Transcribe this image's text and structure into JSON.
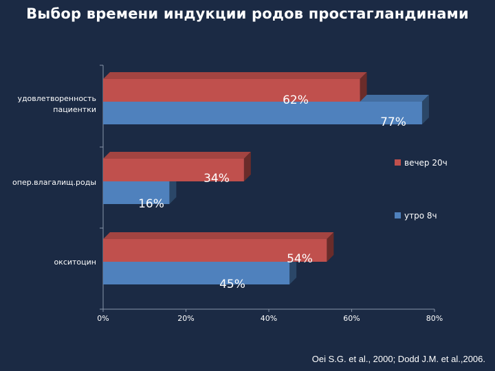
{
  "title": "Выбор времени индукции родов простагландинами",
  "citation": "Oei S.G. et al., 2000; Dodd J.M. et al.,2006.",
  "chart_data": {
    "type": "bar",
    "orientation": "horizontal",
    "categories": [
      "удовлетворенность пациентки",
      "опер.влагалищ.роды",
      "окситоцин"
    ],
    "category_lines": [
      [
        "удовлетворенность",
        "пациентки"
      ],
      [
        "опер.влагалищ.роды"
      ],
      [
        "окситоцин"
      ]
    ],
    "series": [
      {
        "name": "вечер 20ч",
        "values": [
          62,
          34,
          54
        ],
        "labels": [
          "62%",
          "34%",
          "54%"
        ],
        "color": "#c0504d"
      },
      {
        "name": "утро 8ч",
        "values": [
          77,
          16,
          45
        ],
        "labels": [
          "77%",
          "16%",
          "45%"
        ],
        "color": "#4f81bd"
      }
    ],
    "xlim": [
      0,
      80
    ],
    "xticks": [
      "0%",
      "20%",
      "40%",
      "60%",
      "80%"
    ],
    "grid": false,
    "legend": "right"
  }
}
